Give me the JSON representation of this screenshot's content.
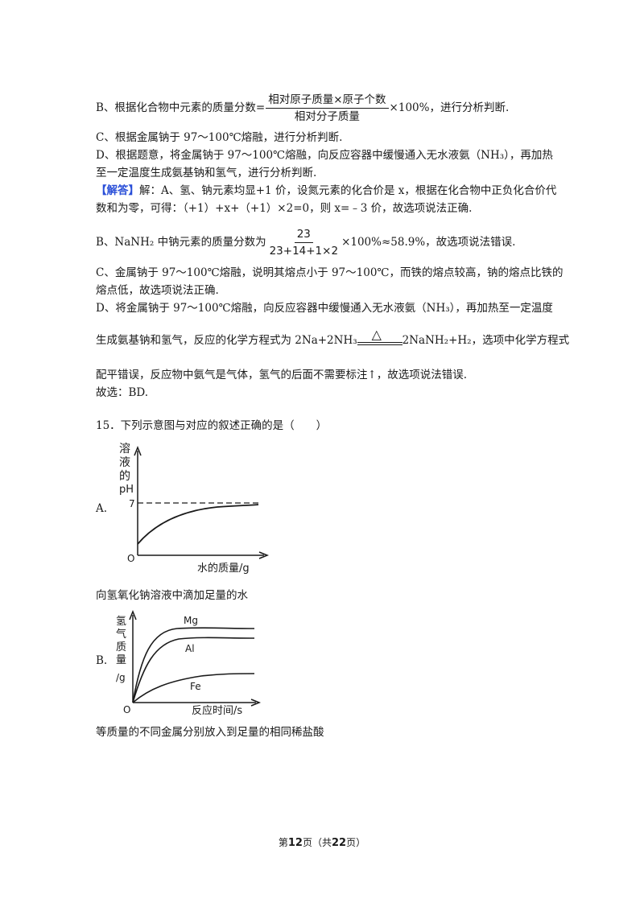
{
  "lines": {
    "b1_pre": "B、根据化合物中元素的质量分数=",
    "b1_num": "相对原子质量×原子个数",
    "b1_den": "相对分子质量",
    "b1_post": "×100%，进行分析判断.",
    "c1": "C、根据金属钠于 97～100℃熔融，进行分析判断.",
    "d1a": "D、根据题意，将金属钠于 97～100℃熔融，向反应容器中缓慢通入无水液氨（NH₃），再加热",
    "d1b": "至一定温度生成氨基钠和氢气，进行分析判断.",
    "ans_tag": "【解答】",
    "ans_a1": "解：A、氢、钠元素均显+1 价，设氮元素的化合价是 x，根据在化合物中正负化合价代",
    "ans_a2": "数和为零，可得：（+1）+x+（+1）×2=0，则 x=﹣3 价，故选项说法正确.",
    "b2_pre": "B、NaNH₂ 中钠元素的质量分数为",
    "b2_num": "23",
    "b2_den": "23+14+1×2",
    "b2_post": "×100%≈58.9%，故选项说法错误.",
    "c2a": "C、金属钠于 97～100℃熔融，说明其熔点小于 97～100℃，而铁的熔点较高，钠的熔点比铁的",
    "c2b": "熔点低，故选项说法正确.",
    "d2a": "D、将金属钠于 97～100℃熔融，向反应容器中缓慢通入无水液氨（NH₃），再加热至一定温度",
    "d2b_pre": "生成氨基钠和氢气，反应的化学方程式为 2Na+2NH₃",
    "d2b_cond": "△",
    "d2b_post": "2NaNH₂+H₂，选项中化学方程式",
    "d2c": "配平错误，反应物中氨气是气体，氢气的后面不需要标注↑，故选项说法错误.",
    "d2d": "故选：BD.",
    "q15": "15．下列示意图与对应的叙述正确的是（　　）"
  },
  "option_a": {
    "label": "A.",
    "caption": "向氢氧化钠溶液中滴加足量的水",
    "y_axis_label": [
      "溶",
      "液",
      "的",
      "pH"
    ],
    "y_tick": "7",
    "origin": "O",
    "x_axis_label": "水的质量/g"
  },
  "option_b": {
    "label": "B.",
    "caption": "等质量的不同金属分别放入到足量的相同稀盐酸",
    "y_axis_label": [
      "氢",
      "气",
      "质",
      "量",
      "/g"
    ],
    "origin": "O",
    "x_axis_label": "反应时间/s",
    "series": [
      "Mg",
      "Al",
      "Fe"
    ]
  },
  "footer": {
    "pre": "第",
    "page": "12",
    "mid": "页（共",
    "total": "22",
    "post": "页）"
  }
}
